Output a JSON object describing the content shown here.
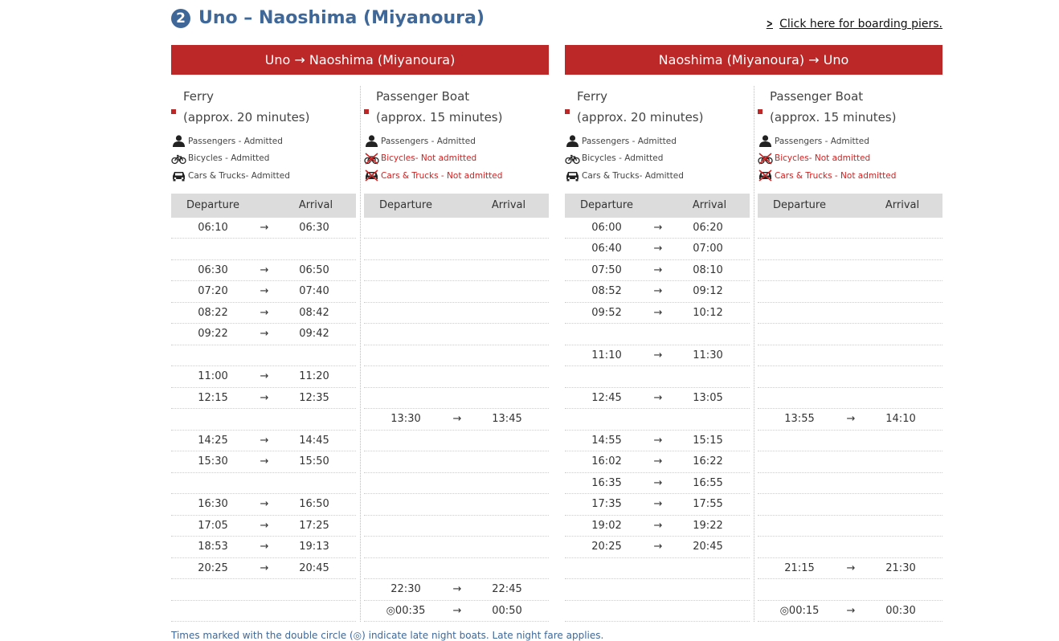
{
  "section": {
    "number": "❷",
    "title": "Uno – Naoshima (Miyanoura)",
    "pier_link": "Click here for boarding piers."
  },
  "directions": [
    {
      "label": "Uno → Naoshima (Miyanoura)",
      "services": [
        {
          "name": "Ferry",
          "duration": "(approx. 20 minutes)",
          "rules": [
            {
              "icon": "person-icon",
              "text": "Passengers - Admitted",
              "ok": true
            },
            {
              "icon": "bicycle-icon",
              "text": "Bicycles - Admitted",
              "ok": true
            },
            {
              "icon": "car-icon",
              "text": "Cars & Trucks- Admitted",
              "ok": true
            }
          ],
          "header": {
            "departure": "Departure",
            "arrival": "Arrival"
          },
          "rows": [
            {
              "dep": "06:10",
              "arr": "06:30"
            },
            {
              "dep": "",
              "arr": ""
            },
            {
              "dep": "06:30",
              "arr": "06:50"
            },
            {
              "dep": "07:20",
              "arr": "07:40"
            },
            {
              "dep": "08:22",
              "arr": "08:42"
            },
            {
              "dep": "09:22",
              "arr": "09:42"
            },
            {
              "dep": "",
              "arr": ""
            },
            {
              "dep": "11:00",
              "arr": "11:20"
            },
            {
              "dep": "12:15",
              "arr": "12:35"
            },
            {
              "dep": "",
              "arr": ""
            },
            {
              "dep": "14:25",
              "arr": "14:45"
            },
            {
              "dep": "15:30",
              "arr": "15:50"
            },
            {
              "dep": "",
              "arr": ""
            },
            {
              "dep": "16:30",
              "arr": "16:50"
            },
            {
              "dep": "17:05",
              "arr": "17:25"
            },
            {
              "dep": "18:53",
              "arr": "19:13"
            },
            {
              "dep": "20:25",
              "arr": "20:45"
            },
            {
              "dep": "",
              "arr": ""
            },
            {
              "dep": "",
              "arr": ""
            }
          ]
        },
        {
          "name": "Passenger Boat",
          "duration": "(approx. 15 minutes)",
          "rules": [
            {
              "icon": "person-icon",
              "text": "Passengers - Admitted",
              "ok": true
            },
            {
              "icon": "bicycle-crossed-icon",
              "text": "Bicycles- Not admitted",
              "ok": false
            },
            {
              "icon": "car-crossed-icon",
              "text": "Cars & Trucks - Not admitted",
              "ok": false
            }
          ],
          "header": {
            "departure": "Departure",
            "arrival": "Arrival"
          },
          "rows": [
            {
              "dep": "",
              "arr": ""
            },
            {
              "dep": "",
              "arr": ""
            },
            {
              "dep": "",
              "arr": ""
            },
            {
              "dep": "",
              "arr": ""
            },
            {
              "dep": "",
              "arr": ""
            },
            {
              "dep": "",
              "arr": ""
            },
            {
              "dep": "",
              "arr": ""
            },
            {
              "dep": "",
              "arr": ""
            },
            {
              "dep": "",
              "arr": ""
            },
            {
              "dep": "13:30",
              "arr": "13:45"
            },
            {
              "dep": "",
              "arr": ""
            },
            {
              "dep": "",
              "arr": ""
            },
            {
              "dep": "",
              "arr": ""
            },
            {
              "dep": "",
              "arr": ""
            },
            {
              "dep": "",
              "arr": ""
            },
            {
              "dep": "",
              "arr": ""
            },
            {
              "dep": "",
              "arr": ""
            },
            {
              "dep": "22:30",
              "arr": "22:45"
            },
            {
              "dep": "◎00:35",
              "arr": "00:50"
            }
          ]
        }
      ]
    },
    {
      "label": "Naoshima (Miyanoura) → Uno",
      "services": [
        {
          "name": "Ferry",
          "duration": "(approx. 20 minutes)",
          "rules": [
            {
              "icon": "person-icon",
              "text": "Passengers - Admitted",
              "ok": true
            },
            {
              "icon": "bicycle-icon",
              "text": "Bicycles - Admitted",
              "ok": true
            },
            {
              "icon": "car-icon",
              "text": "Cars & Trucks- Admitted",
              "ok": true
            }
          ],
          "header": {
            "departure": "Departure",
            "arrival": "Arrival"
          },
          "rows": [
            {
              "dep": "06:00",
              "arr": "06:20"
            },
            {
              "dep": "06:40",
              "arr": "07:00"
            },
            {
              "dep": "07:50",
              "arr": "08:10"
            },
            {
              "dep": "08:52",
              "arr": "09:12"
            },
            {
              "dep": "09:52",
              "arr": "10:12"
            },
            {
              "dep": "",
              "arr": ""
            },
            {
              "dep": "11:10",
              "arr": "11:30"
            },
            {
              "dep": "",
              "arr": ""
            },
            {
              "dep": "12:45",
              "arr": "13:05"
            },
            {
              "dep": "",
              "arr": ""
            },
            {
              "dep": "14:55",
              "arr": "15:15"
            },
            {
              "dep": "16:02",
              "arr": "16:22"
            },
            {
              "dep": "16:35",
              "arr": "16:55"
            },
            {
              "dep": "17:35",
              "arr": "17:55"
            },
            {
              "dep": "19:02",
              "arr": "19:22"
            },
            {
              "dep": "20:25",
              "arr": "20:45"
            },
            {
              "dep": "",
              "arr": ""
            },
            {
              "dep": "",
              "arr": ""
            },
            {
              "dep": "",
              "arr": ""
            }
          ]
        },
        {
          "name": "Passenger Boat",
          "duration": "(approx. 15 minutes)",
          "rules": [
            {
              "icon": "person-icon",
              "text": "Passengers - Admitted",
              "ok": true
            },
            {
              "icon": "bicycle-crossed-icon",
              "text": "Bicycles- Not admitted",
              "ok": false
            },
            {
              "icon": "car-crossed-icon",
              "text": "Cars & Trucks - Not admitted",
              "ok": false
            }
          ],
          "header": {
            "departure": "Departure",
            "arrival": "Arrival"
          },
          "rows": [
            {
              "dep": "",
              "arr": ""
            },
            {
              "dep": "",
              "arr": ""
            },
            {
              "dep": "",
              "arr": ""
            },
            {
              "dep": "",
              "arr": ""
            },
            {
              "dep": "",
              "arr": ""
            },
            {
              "dep": "",
              "arr": ""
            },
            {
              "dep": "",
              "arr": ""
            },
            {
              "dep": "",
              "arr": ""
            },
            {
              "dep": "",
              "arr": ""
            },
            {
              "dep": "13:55",
              "arr": "14:10"
            },
            {
              "dep": "",
              "arr": ""
            },
            {
              "dep": "",
              "arr": ""
            },
            {
              "dep": "",
              "arr": ""
            },
            {
              "dep": "",
              "arr": ""
            },
            {
              "dep": "",
              "arr": ""
            },
            {
              "dep": "",
              "arr": ""
            },
            {
              "dep": "21:15",
              "arr": "21:30"
            },
            {
              "dep": "",
              "arr": ""
            },
            {
              "dep": "◎00:15",
              "arr": "00:30"
            }
          ]
        }
      ]
    }
  ],
  "arrow": "→",
  "footnote": "Times marked with the double circle (◎) indicate late night boats. Late night fare applies.",
  "colors": {
    "accent": "#bc2727",
    "title": "#3f6899",
    "header_bg": "#dcdcdc",
    "not_admitted": "#d32020"
  }
}
